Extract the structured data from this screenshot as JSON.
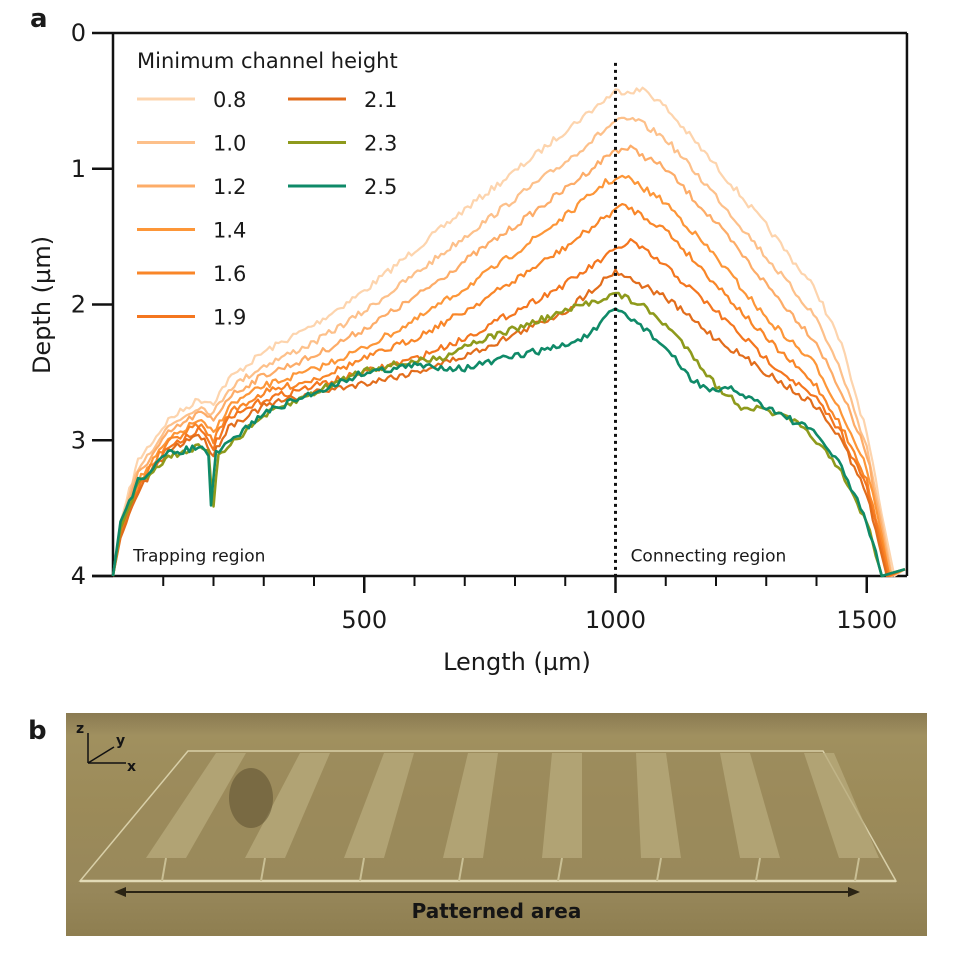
{
  "panels": {
    "a_label": "a",
    "b_label": "b"
  },
  "chart_data": {
    "type": "line",
    "title": "",
    "xlabel": "Length (µm)",
    "ylabel": "Depth (µm)",
    "xlim": [
      0,
      1580
    ],
    "ylim": [
      0,
      4
    ],
    "y_inverted": true,
    "xticks_major": [
      500,
      1000,
      1500
    ],
    "xticks_minor": [
      100,
      200,
      300,
      400,
      600,
      700,
      800,
      900,
      1100,
      1200,
      1300,
      1400
    ],
    "yticks": [
      0,
      1,
      2,
      3,
      4
    ],
    "grid": false,
    "legend": {
      "title": "Minimum channel height",
      "placement": "top-left",
      "columns": 2
    },
    "annotations": [
      {
        "text": "Trapping region",
        "x": 40,
        "y": 3.85
      },
      {
        "text": "Connecting region",
        "x": 1030,
        "y": 3.85
      }
    ],
    "vline": {
      "x": 1000,
      "style": "dotted",
      "y_from": 0.22,
      "y_to": 4
    },
    "series": [
      {
        "name": "0.8",
        "color": "#fdd4ad",
        "points": [
          [
            0,
            4.0
          ],
          [
            15,
            3.6
          ],
          [
            50,
            3.15
          ],
          [
            110,
            2.85
          ],
          [
            170,
            2.7
          ],
          [
            200,
            2.72
          ],
          [
            230,
            2.55
          ],
          [
            300,
            2.35
          ],
          [
            400,
            2.15
          ],
          [
            500,
            1.9
          ],
          [
            600,
            1.6
          ],
          [
            700,
            1.3
          ],
          [
            800,
            1.02
          ],
          [
            900,
            0.72
          ],
          [
            1000,
            0.43
          ],
          [
            1060,
            0.42
          ],
          [
            1100,
            0.55
          ],
          [
            1200,
            0.98
          ],
          [
            1300,
            1.42
          ],
          [
            1400,
            1.9
          ],
          [
            1450,
            2.3
          ],
          [
            1500,
            2.95
          ],
          [
            1530,
            3.55
          ],
          [
            1555,
            4.0
          ]
        ]
      },
      {
        "name": "1.0",
        "color": "#fdc08a",
        "points": [
          [
            0,
            4.0
          ],
          [
            15,
            3.62
          ],
          [
            50,
            3.2
          ],
          [
            110,
            2.9
          ],
          [
            170,
            2.75
          ],
          [
            200,
            2.8
          ],
          [
            230,
            2.62
          ],
          [
            300,
            2.45
          ],
          [
            400,
            2.28
          ],
          [
            500,
            2.05
          ],
          [
            600,
            1.78
          ],
          [
            700,
            1.5
          ],
          [
            800,
            1.22
          ],
          [
            900,
            0.95
          ],
          [
            1000,
            0.65
          ],
          [
            1040,
            0.64
          ],
          [
            1100,
            0.78
          ],
          [
            1200,
            1.2
          ],
          [
            1300,
            1.65
          ],
          [
            1400,
            2.1
          ],
          [
            1450,
            2.5
          ],
          [
            1500,
            3.05
          ],
          [
            1530,
            3.6
          ],
          [
            1550,
            4.0
          ]
        ]
      },
      {
        "name": "1.2",
        "color": "#fdac68",
        "points": [
          [
            0,
            4.0
          ],
          [
            15,
            3.65
          ],
          [
            50,
            3.25
          ],
          [
            110,
            2.95
          ],
          [
            170,
            2.8
          ],
          [
            200,
            2.85
          ],
          [
            230,
            2.68
          ],
          [
            300,
            2.52
          ],
          [
            400,
            2.38
          ],
          [
            500,
            2.18
          ],
          [
            600,
            1.95
          ],
          [
            700,
            1.68
          ],
          [
            800,
            1.42
          ],
          [
            900,
            1.15
          ],
          [
            1000,
            0.86
          ],
          [
            1030,
            0.85
          ],
          [
            1100,
            1.0
          ],
          [
            1200,
            1.4
          ],
          [
            1300,
            1.85
          ],
          [
            1400,
            2.28
          ],
          [
            1450,
            2.65
          ],
          [
            1500,
            3.1
          ],
          [
            1530,
            3.65
          ],
          [
            1548,
            4.0
          ]
        ]
      },
      {
        "name": "1.4",
        "color": "#fd9638",
        "points": [
          [
            0,
            4.0
          ],
          [
            15,
            3.66
          ],
          [
            50,
            3.3
          ],
          [
            110,
            3.0
          ],
          [
            170,
            2.85
          ],
          [
            200,
            2.95
          ],
          [
            230,
            2.75
          ],
          [
            300,
            2.6
          ],
          [
            400,
            2.48
          ],
          [
            500,
            2.32
          ],
          [
            600,
            2.12
          ],
          [
            700,
            1.88
          ],
          [
            800,
            1.62
          ],
          [
            900,
            1.35
          ],
          [
            980,
            1.1
          ],
          [
            1000,
            1.08
          ],
          [
            1020,
            1.06
          ],
          [
            1100,
            1.25
          ],
          [
            1200,
            1.65
          ],
          [
            1300,
            2.1
          ],
          [
            1400,
            2.45
          ],
          [
            1450,
            2.8
          ],
          [
            1500,
            3.2
          ],
          [
            1530,
            3.7
          ],
          [
            1545,
            4.0
          ]
        ]
      },
      {
        "name": "1.6",
        "color": "#f98628",
        "points": [
          [
            0,
            4.0
          ],
          [
            15,
            3.68
          ],
          [
            50,
            3.32
          ],
          [
            110,
            3.02
          ],
          [
            170,
            2.88
          ],
          [
            200,
            3.0
          ],
          [
            230,
            2.8
          ],
          [
            300,
            2.65
          ],
          [
            400,
            2.55
          ],
          [
            500,
            2.4
          ],
          [
            600,
            2.25
          ],
          [
            700,
            2.05
          ],
          [
            800,
            1.82
          ],
          [
            900,
            1.58
          ],
          [
            1000,
            1.3
          ],
          [
            1020,
            1.27
          ],
          [
            1100,
            1.45
          ],
          [
            1200,
            1.85
          ],
          [
            1300,
            2.25
          ],
          [
            1400,
            2.6
          ],
          [
            1450,
            2.9
          ],
          [
            1500,
            3.3
          ],
          [
            1530,
            3.75
          ],
          [
            1545,
            4.0
          ]
        ]
      },
      {
        "name": "1.9",
        "color": "#f4761f",
        "points": [
          [
            0,
            4.0
          ],
          [
            15,
            3.7
          ],
          [
            50,
            3.35
          ],
          [
            110,
            3.05
          ],
          [
            170,
            2.92
          ],
          [
            200,
            3.05
          ],
          [
            230,
            2.85
          ],
          [
            300,
            2.7
          ],
          [
            400,
            2.6
          ],
          [
            500,
            2.5
          ],
          [
            600,
            2.4
          ],
          [
            700,
            2.25
          ],
          [
            800,
            2.05
          ],
          [
            900,
            1.85
          ],
          [
            1000,
            1.6
          ],
          [
            1030,
            1.53
          ],
          [
            1100,
            1.72
          ],
          [
            1200,
            2.05
          ],
          [
            1300,
            2.4
          ],
          [
            1400,
            2.7
          ],
          [
            1450,
            2.95
          ],
          [
            1500,
            3.35
          ],
          [
            1530,
            3.8
          ],
          [
            1542,
            4.0
          ]
        ]
      },
      {
        "name": "2.1",
        "color": "#e26d1c",
        "points": [
          [
            0,
            4.0
          ],
          [
            15,
            3.72
          ],
          [
            50,
            3.38
          ],
          [
            110,
            3.08
          ],
          [
            170,
            2.95
          ],
          [
            200,
            3.1
          ],
          [
            230,
            2.9
          ],
          [
            300,
            2.75
          ],
          [
            400,
            2.65
          ],
          [
            500,
            2.58
          ],
          [
            600,
            2.5
          ],
          [
            700,
            2.38
          ],
          [
            800,
            2.22
          ],
          [
            900,
            2.05
          ],
          [
            1000,
            1.75
          ],
          [
            1100,
            1.95
          ],
          [
            1200,
            2.25
          ],
          [
            1300,
            2.5
          ],
          [
            1400,
            2.75
          ],
          [
            1450,
            3.0
          ],
          [
            1500,
            3.4
          ],
          [
            1530,
            3.85
          ],
          [
            1540,
            4.0
          ]
        ]
      },
      {
        "name": "2.3",
        "color": "#8e9a1c",
        "points": [
          [
            0,
            4.0
          ],
          [
            15,
            3.65
          ],
          [
            50,
            3.32
          ],
          [
            110,
            3.12
          ],
          [
            170,
            3.05
          ],
          [
            190,
            3.1
          ],
          [
            200,
            3.5
          ],
          [
            210,
            3.1
          ],
          [
            300,
            2.82
          ],
          [
            400,
            2.65
          ],
          [
            500,
            2.48
          ],
          [
            600,
            2.42
          ],
          [
            650,
            2.4
          ],
          [
            700,
            2.3
          ],
          [
            800,
            2.18
          ],
          [
            900,
            2.05
          ],
          [
            1000,
            1.92
          ],
          [
            1050,
            2.0
          ],
          [
            1100,
            2.15
          ],
          [
            1150,
            2.35
          ],
          [
            1200,
            2.6
          ],
          [
            1250,
            2.75
          ],
          [
            1300,
            2.78
          ],
          [
            1350,
            2.85
          ],
          [
            1400,
            3.0
          ],
          [
            1450,
            3.25
          ],
          [
            1500,
            3.6
          ],
          [
            1530,
            4.0
          ]
        ]
      },
      {
        "name": "2.5",
        "color": "#0f8a68",
        "points": [
          [
            0,
            4.0
          ],
          [
            15,
            3.6
          ],
          [
            50,
            3.3
          ],
          [
            110,
            3.1
          ],
          [
            170,
            3.05
          ],
          [
            190,
            3.1
          ],
          [
            195,
            3.5
          ],
          [
            205,
            3.1
          ],
          [
            300,
            2.8
          ],
          [
            400,
            2.65
          ],
          [
            500,
            2.5
          ],
          [
            600,
            2.45
          ],
          [
            700,
            2.47
          ],
          [
            800,
            2.38
          ],
          [
            900,
            2.3
          ],
          [
            950,
            2.22
          ],
          [
            1000,
            2.03
          ],
          [
            1050,
            2.15
          ],
          [
            1100,
            2.32
          ],
          [
            1150,
            2.55
          ],
          [
            1200,
            2.65
          ],
          [
            1230,
            2.62
          ],
          [
            1300,
            2.75
          ],
          [
            1400,
            2.95
          ],
          [
            1450,
            3.2
          ],
          [
            1500,
            3.6
          ],
          [
            1530,
            4.0
          ]
        ]
      }
    ]
  },
  "photo": {
    "description": "Photo of patterned glass slide with eight channel stripes",
    "caption": "Patterned area",
    "axes": {
      "z": "z",
      "y": "y",
      "x": "x"
    },
    "stripe_count": 8
  }
}
